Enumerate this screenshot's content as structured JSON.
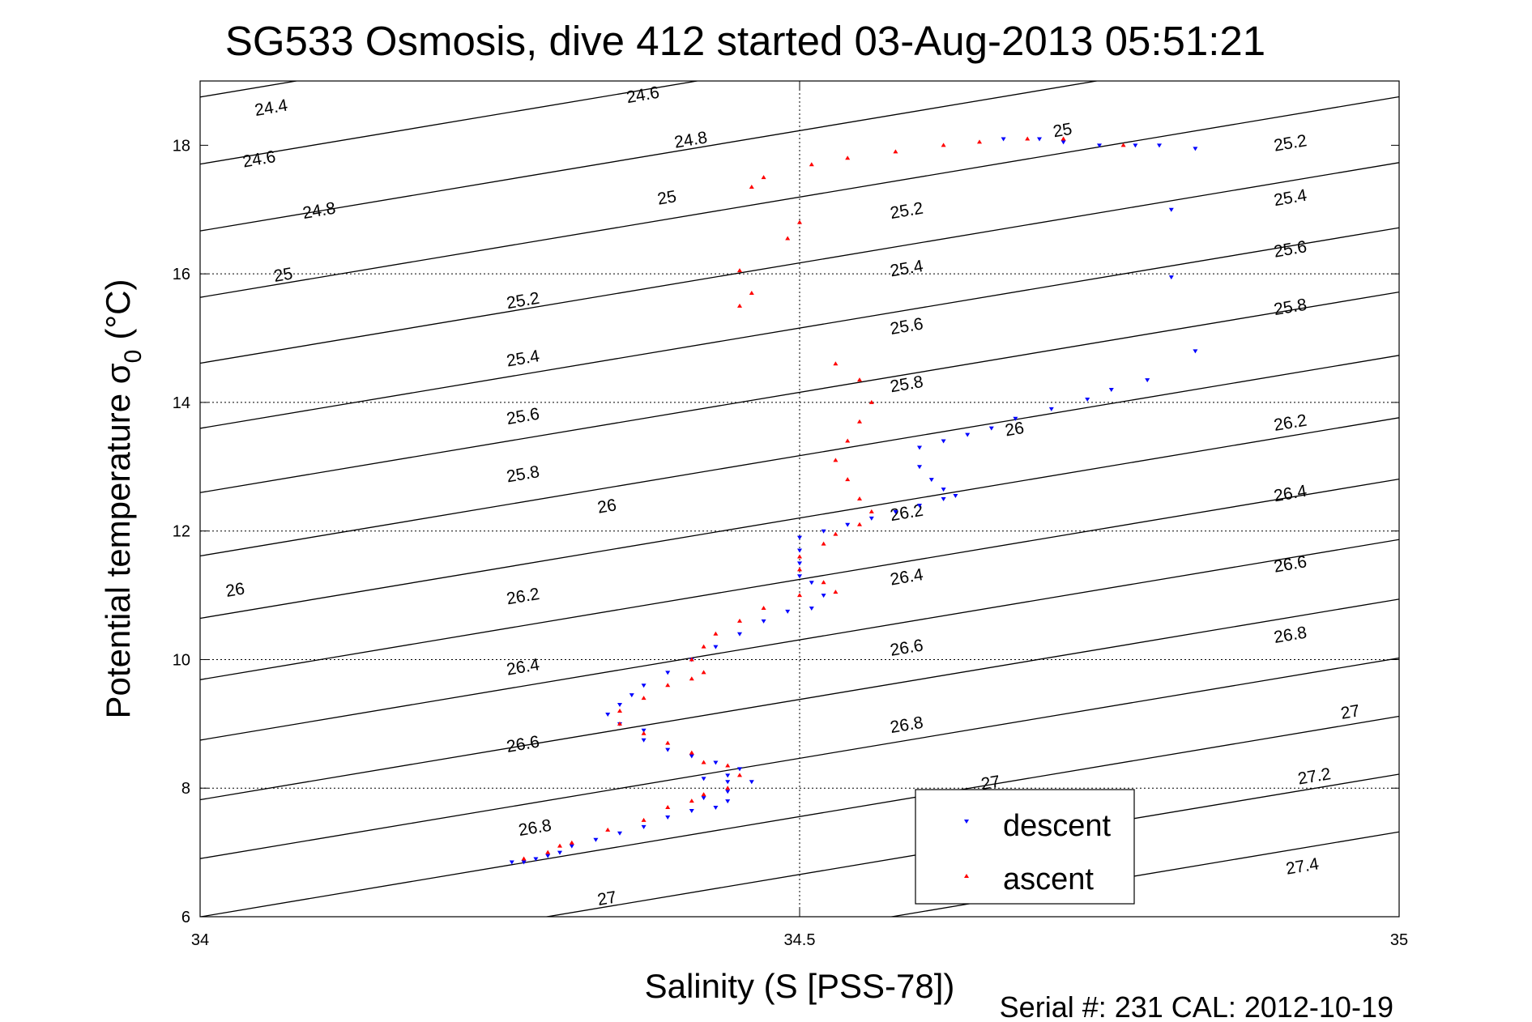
{
  "chart_data": {
    "type": "scatter",
    "title": "SG533 Osmosis, dive 412 started 03-Aug-2013 05:51:21",
    "xlabel": "Salinity (S [PSS-78])",
    "ylabel_main": "Potential temperature σ",
    "ylabel_sub": "0",
    "ylabel_unit": "(°C)",
    "xlim": [
      34,
      35
    ],
    "ylim": [
      6,
      19
    ],
    "xticks": [
      34,
      34.5,
      35
    ],
    "xtick_labels": [
      "34",
      "34.5",
      "35"
    ],
    "yticks": [
      6,
      8,
      10,
      12,
      14,
      16,
      18
    ],
    "ytick_labels": [
      "6",
      "8",
      "10",
      "12",
      "14",
      "16",
      "18"
    ],
    "grid": true,
    "footer": "Serial #: 231  CAL: 2012-10-19",
    "legend_position": "bottom-center",
    "colors": {
      "descent": "#0000ff",
      "ascent": "#ff0000",
      "contour": "#000000"
    },
    "contours": {
      "levels": [
        24.4,
        24.6,
        24.8,
        25,
        25.2,
        25.4,
        25.6,
        25.8,
        26,
        26.2,
        26.4,
        26.6,
        26.8,
        27,
        27.2,
        27.4
      ],
      "labels": [
        {
          "text": "24.4",
          "x": 34.06,
          "y": 18.5
        },
        {
          "text": "24.6",
          "x": 34.05,
          "y": 17.7
        },
        {
          "text": "24.8",
          "x": 34.1,
          "y": 16.9
        },
        {
          "text": "25",
          "x": 34.07,
          "y": 15.9
        },
        {
          "text": "25.2",
          "x": 34.27,
          "y": 15.5
        },
        {
          "text": "25.4",
          "x": 34.27,
          "y": 14.6
        },
        {
          "text": "25.6",
          "x": 34.27,
          "y": 13.7
        },
        {
          "text": "25.8",
          "x": 34.27,
          "y": 12.8
        },
        {
          "text": "26",
          "x": 34.34,
          "y": 12.3
        },
        {
          "text": "26",
          "x": 34.03,
          "y": 11.0
        },
        {
          "text": "26.2",
          "x": 34.27,
          "y": 10.9
        },
        {
          "text": "26.4",
          "x": 34.27,
          "y": 9.8
        },
        {
          "text": "26.6",
          "x": 34.27,
          "y": 8.6
        },
        {
          "text": "26.8",
          "x": 34.28,
          "y": 7.3
        },
        {
          "text": "27",
          "x": 34.34,
          "y": 6.2
        },
        {
          "text": "24.6",
          "x": 34.37,
          "y": 18.7
        },
        {
          "text": "24.8",
          "x": 34.41,
          "y": 18.0
        },
        {
          "text": "25",
          "x": 34.39,
          "y": 17.1
        },
        {
          "text": "25",
          "x": 34.72,
          "y": 18.15
        },
        {
          "text": "25.2",
          "x": 34.59,
          "y": 16.9
        },
        {
          "text": "25.4",
          "x": 34.59,
          "y": 16.0
        },
        {
          "text": "25.6",
          "x": 34.59,
          "y": 15.1
        },
        {
          "text": "25.8",
          "x": 34.59,
          "y": 14.2
        },
        {
          "text": "26",
          "x": 34.68,
          "y": 13.5
        },
        {
          "text": "26.2",
          "x": 34.59,
          "y": 12.2
        },
        {
          "text": "26.4",
          "x": 34.59,
          "y": 11.2
        },
        {
          "text": "26.6",
          "x": 34.59,
          "y": 10.1
        },
        {
          "text": "26.8",
          "x": 34.59,
          "y": 8.9
        },
        {
          "text": "27",
          "x": 34.66,
          "y": 8.0
        },
        {
          "text": "25.2",
          "x": 34.91,
          "y": 17.95
        },
        {
          "text": "25.4",
          "x": 34.91,
          "y": 17.1
        },
        {
          "text": "25.6",
          "x": 34.91,
          "y": 16.3
        },
        {
          "text": "25.8",
          "x": 34.91,
          "y": 15.4
        },
        {
          "text": "26.2",
          "x": 34.91,
          "y": 13.6
        },
        {
          "text": "26.4",
          "x": 34.91,
          "y": 12.5
        },
        {
          "text": "26.6",
          "x": 34.91,
          "y": 11.4
        },
        {
          "text": "26.8",
          "x": 34.91,
          "y": 10.3
        },
        {
          "text": "27",
          "x": 34.96,
          "y": 9.1
        },
        {
          "text": "27.2",
          "x": 34.93,
          "y": 8.1
        },
        {
          "text": "27.4",
          "x": 34.92,
          "y": 6.7
        }
      ]
    },
    "series": [
      {
        "name": "descent",
        "marker": "triangle-down",
        "points": [
          [
            34.83,
            17.95
          ],
          [
            34.8,
            18.0
          ],
          [
            34.78,
            18.0
          ],
          [
            34.75,
            18.0
          ],
          [
            34.72,
            18.05
          ],
          [
            34.7,
            18.1
          ],
          [
            34.67,
            18.1
          ],
          [
            34.81,
            17.0
          ],
          [
            34.81,
            15.95
          ],
          [
            34.83,
            14.8
          ],
          [
            34.79,
            14.35
          ],
          [
            34.76,
            14.2
          ],
          [
            34.74,
            14.05
          ],
          [
            34.71,
            13.9
          ],
          [
            34.68,
            13.75
          ],
          [
            34.66,
            13.6
          ],
          [
            34.64,
            13.5
          ],
          [
            34.62,
            13.4
          ],
          [
            34.6,
            13.3
          ],
          [
            34.6,
            13.0
          ],
          [
            34.61,
            12.8
          ],
          [
            34.62,
            12.65
          ],
          [
            34.63,
            12.55
          ],
          [
            34.62,
            12.5
          ],
          [
            34.6,
            12.4
          ],
          [
            34.58,
            12.3
          ],
          [
            34.56,
            12.2
          ],
          [
            34.54,
            12.1
          ],
          [
            34.52,
            12.0
          ],
          [
            34.5,
            11.9
          ],
          [
            34.5,
            11.7
          ],
          [
            34.5,
            11.5
          ],
          [
            34.5,
            11.3
          ],
          [
            34.51,
            11.2
          ],
          [
            34.52,
            11.0
          ],
          [
            34.51,
            10.8
          ],
          [
            34.49,
            10.75
          ],
          [
            34.47,
            10.6
          ],
          [
            34.45,
            10.4
          ],
          [
            34.43,
            10.2
          ],
          [
            34.41,
            10.0
          ],
          [
            34.39,
            9.8
          ],
          [
            34.37,
            9.6
          ],
          [
            34.36,
            9.45
          ],
          [
            34.35,
            9.3
          ],
          [
            34.34,
            9.15
          ],
          [
            34.35,
            9.0
          ],
          [
            34.37,
            8.9
          ],
          [
            34.37,
            8.75
          ],
          [
            34.39,
            8.6
          ],
          [
            34.41,
            8.5
          ],
          [
            34.43,
            8.4
          ],
          [
            34.45,
            8.3
          ],
          [
            34.44,
            8.2
          ],
          [
            34.42,
            8.15
          ],
          [
            34.44,
            8.1
          ],
          [
            34.46,
            8.1
          ],
          [
            34.44,
            7.95
          ],
          [
            34.42,
            7.85
          ],
          [
            34.44,
            7.8
          ],
          [
            34.43,
            7.7
          ],
          [
            34.41,
            7.65
          ],
          [
            34.39,
            7.55
          ],
          [
            34.37,
            7.4
          ],
          [
            34.35,
            7.3
          ],
          [
            34.33,
            7.2
          ],
          [
            34.31,
            7.1
          ],
          [
            34.3,
            7.0
          ],
          [
            34.29,
            6.95
          ],
          [
            34.28,
            6.9
          ],
          [
            34.27,
            6.85
          ],
          [
            34.26,
            6.85
          ]
        ]
      },
      {
        "name": "ascent",
        "marker": "triangle-up",
        "points": [
          [
            34.77,
            18.0
          ],
          [
            34.72,
            18.1
          ],
          [
            34.69,
            18.1
          ],
          [
            34.65,
            18.05
          ],
          [
            34.62,
            18.0
          ],
          [
            34.58,
            17.9
          ],
          [
            34.54,
            17.8
          ],
          [
            34.51,
            17.7
          ],
          [
            34.47,
            17.5
          ],
          [
            34.46,
            17.35
          ],
          [
            34.5,
            16.8
          ],
          [
            34.49,
            16.55
          ],
          [
            34.45,
            16.05
          ],
          [
            34.46,
            15.7
          ],
          [
            34.45,
            15.5
          ],
          [
            34.53,
            14.6
          ],
          [
            34.55,
            14.35
          ],
          [
            34.56,
            14.0
          ],
          [
            34.55,
            13.7
          ],
          [
            34.54,
            13.4
          ],
          [
            34.53,
            13.1
          ],
          [
            34.54,
            12.8
          ],
          [
            34.55,
            12.5
          ],
          [
            34.56,
            12.3
          ],
          [
            34.55,
            12.1
          ],
          [
            34.53,
            11.95
          ],
          [
            34.52,
            11.8
          ],
          [
            34.5,
            11.6
          ],
          [
            34.5,
            11.4
          ],
          [
            34.52,
            11.2
          ],
          [
            34.53,
            11.05
          ],
          [
            34.5,
            11.0
          ],
          [
            34.47,
            10.8
          ],
          [
            34.45,
            10.6
          ],
          [
            34.43,
            10.4
          ],
          [
            34.42,
            10.2
          ],
          [
            34.41,
            10.0
          ],
          [
            34.42,
            9.8
          ],
          [
            34.41,
            9.7
          ],
          [
            34.39,
            9.6
          ],
          [
            34.37,
            9.4
          ],
          [
            34.35,
            9.2
          ],
          [
            34.35,
            9.0
          ],
          [
            34.37,
            8.85
          ],
          [
            34.39,
            8.7
          ],
          [
            34.41,
            8.55
          ],
          [
            34.42,
            8.4
          ],
          [
            34.44,
            8.35
          ],
          [
            34.45,
            8.2
          ],
          [
            34.44,
            8.0
          ],
          [
            34.42,
            7.9
          ],
          [
            34.41,
            7.8
          ],
          [
            34.39,
            7.7
          ],
          [
            34.37,
            7.5
          ],
          [
            34.34,
            7.35
          ],
          [
            34.31,
            7.15
          ],
          [
            34.29,
            7.0
          ],
          [
            34.27,
            6.9
          ],
          [
            34.3,
            7.1
          ]
        ]
      }
    ]
  }
}
